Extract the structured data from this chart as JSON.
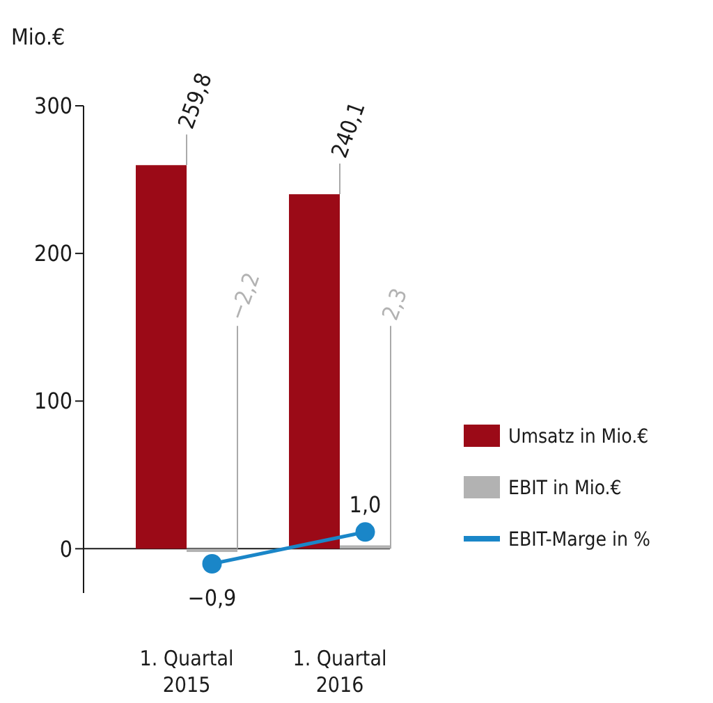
{
  "chart_data": {
    "type": "bar",
    "ylabel": "Mio.€",
    "categories": [
      "1. Quartal 2015",
      "1. Quartal 2016"
    ],
    "ylim": [
      -30,
      300
    ],
    "yticks": [
      0,
      100,
      200,
      300
    ],
    "y2lim": [
      -2.65,
      26.5
    ],
    "legend": "right",
    "marker": "circle",
    "series": [
      {
        "name": "Umsatz in Mio.€",
        "color": "#9b0a17",
        "values": [
          259.8,
          240.1
        ],
        "value_labels": [
          "259,8",
          "240,1"
        ]
      },
      {
        "name": "EBIT in Mio.€",
        "color": "#b2b2b2",
        "values": [
          -2.2,
          2.3
        ],
        "value_labels": [
          "−2,2",
          "2,3"
        ]
      },
      {
        "name": "EBIT-Marge in %",
        "type": "line",
        "axis": "y2",
        "color": "#1a86c8",
        "values": [
          -0.9,
          1.0
        ],
        "value_labels": [
          "−0,9",
          "1,0"
        ]
      }
    ]
  }
}
